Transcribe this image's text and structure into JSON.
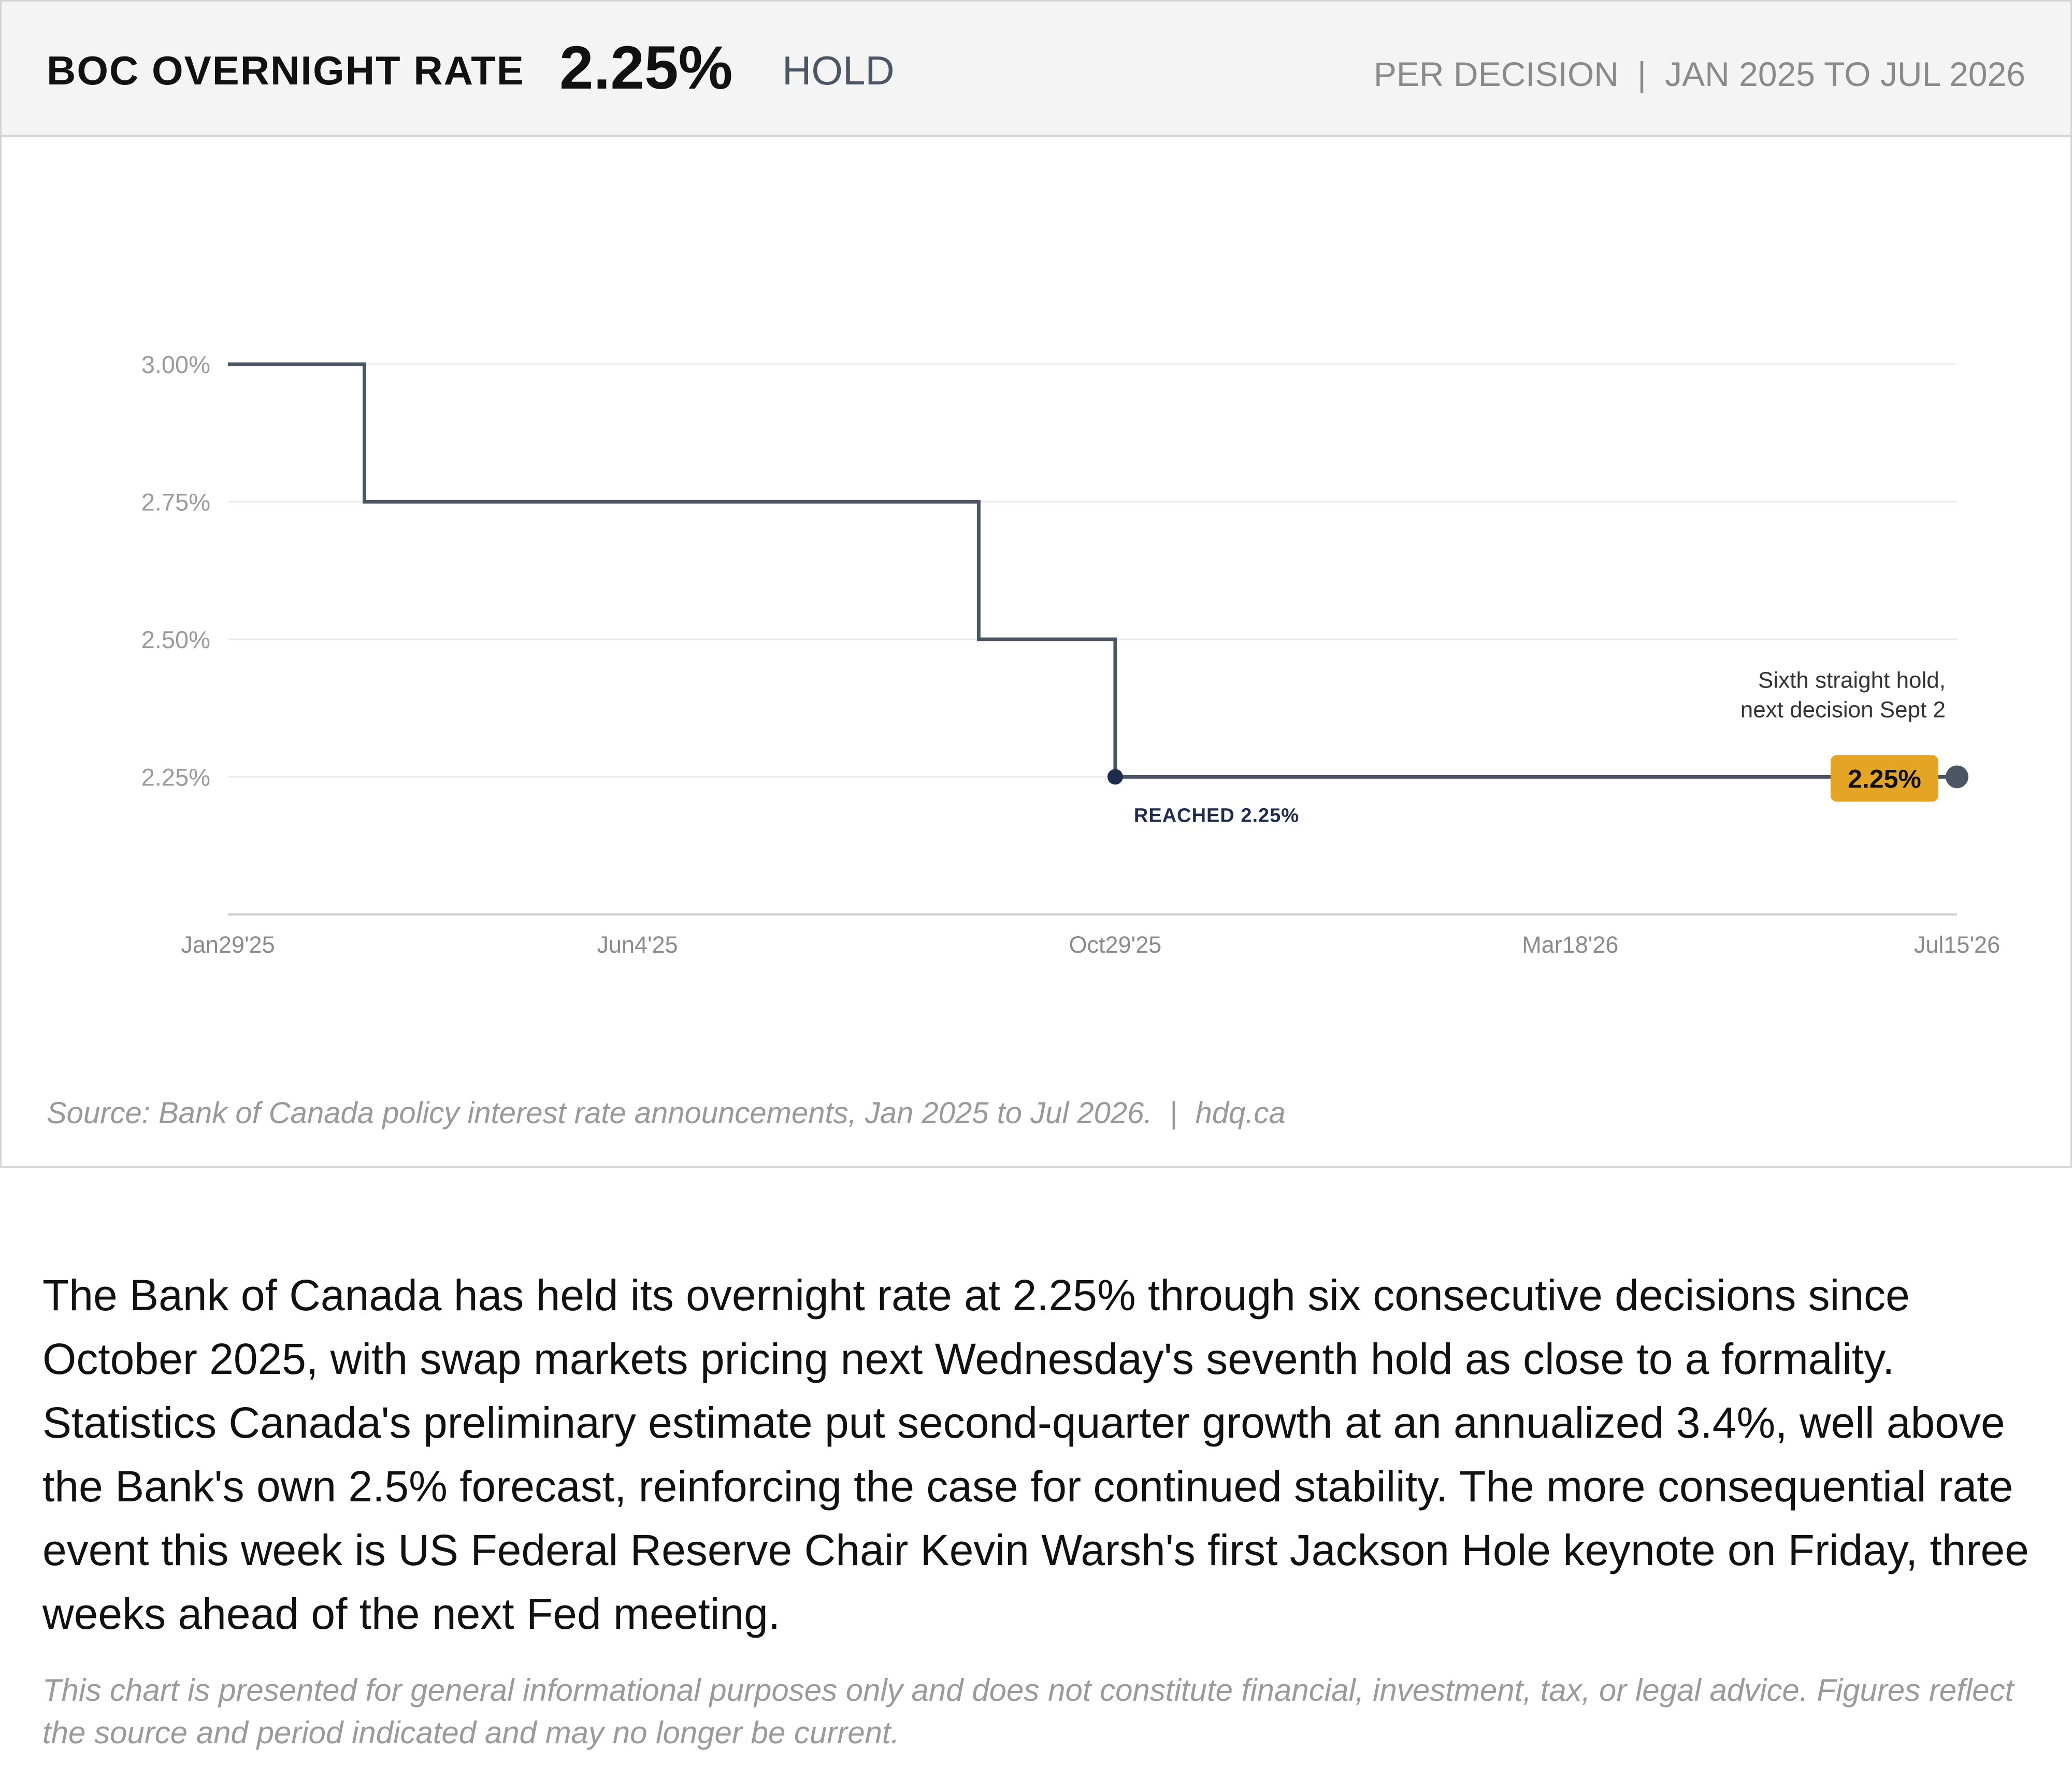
{
  "header": {
    "title": "BOC OVERNIGHT RATE",
    "value": "2.25%",
    "status": "HOLD",
    "frequency": "PER DECISION",
    "separator": "|",
    "period": "JAN 2025 TO JUL 2026"
  },
  "chart_data": {
    "type": "line",
    "step": true,
    "x": [
      "2025-01-29",
      "2025-03-12",
      "2025-07-30",
      "2025-09-17",
      "2025-10-29",
      "2026-07-15"
    ],
    "series": [
      {
        "values": [
          3.0,
          2.75,
          2.75,
          2.5,
          2.25,
          2.25
        ]
      }
    ],
    "x_ticks": [
      "Jan29'25",
      "Jun4'25",
      "Oct29'25",
      "Mar18'26",
      "Jul15'26"
    ],
    "x_tick_dates": [
      "2025-01-29",
      "2025-06-04",
      "2025-10-29",
      "2026-03-18",
      "2026-07-15"
    ],
    "y_ticks": [
      3.0,
      2.75,
      2.5,
      2.25
    ],
    "y_tick_labels": [
      "3.00%",
      "2.75%",
      "2.50%",
      "2.25%"
    ],
    "ylim": [
      2.0,
      3.0
    ],
    "grid": true,
    "line_color": "#4b5563",
    "marker_color": "#1e2d4d",
    "badge_color": "#e5a524",
    "annotations": {
      "reached": {
        "x": "2025-10-29",
        "y": 2.25,
        "text": "REACHED 2.25%"
      },
      "end_note": {
        "x": "2026-07-15",
        "y": 2.25,
        "lines": [
          "Sixth straight hold,",
          "next decision Sept 2"
        ]
      },
      "badge": {
        "x": "2026-07-15",
        "y": 2.25,
        "text": "2.25%"
      }
    }
  },
  "source": {
    "text": "Source: Bank of Canada policy interest rate announcements, Jan 2025 to Jul 2026.",
    "separator": "|",
    "site": "hdq.ca"
  },
  "article": {
    "paragraph": "The Bank of Canada has held its overnight rate at 2.25% through six consecutive decisions since October 2025, with swap markets pricing next Wednesday's seventh hold as close to a formality. Statistics Canada's preliminary estimate put second-quarter growth at an annualized 3.4%, well above the Bank's own 2.5% forecast, reinforcing the case for continued stability. The more consequential rate event this week is US Federal Reserve Chair Kevin Warsh's first Jackson Hole keynote on Friday, three weeks ahead of the next Fed meeting.",
    "disclaimer": "This chart is presented for general informational purposes only and does not constitute financial, investment, tax, or legal advice. Figures reflect the source and period indicated and may no longer be current."
  }
}
